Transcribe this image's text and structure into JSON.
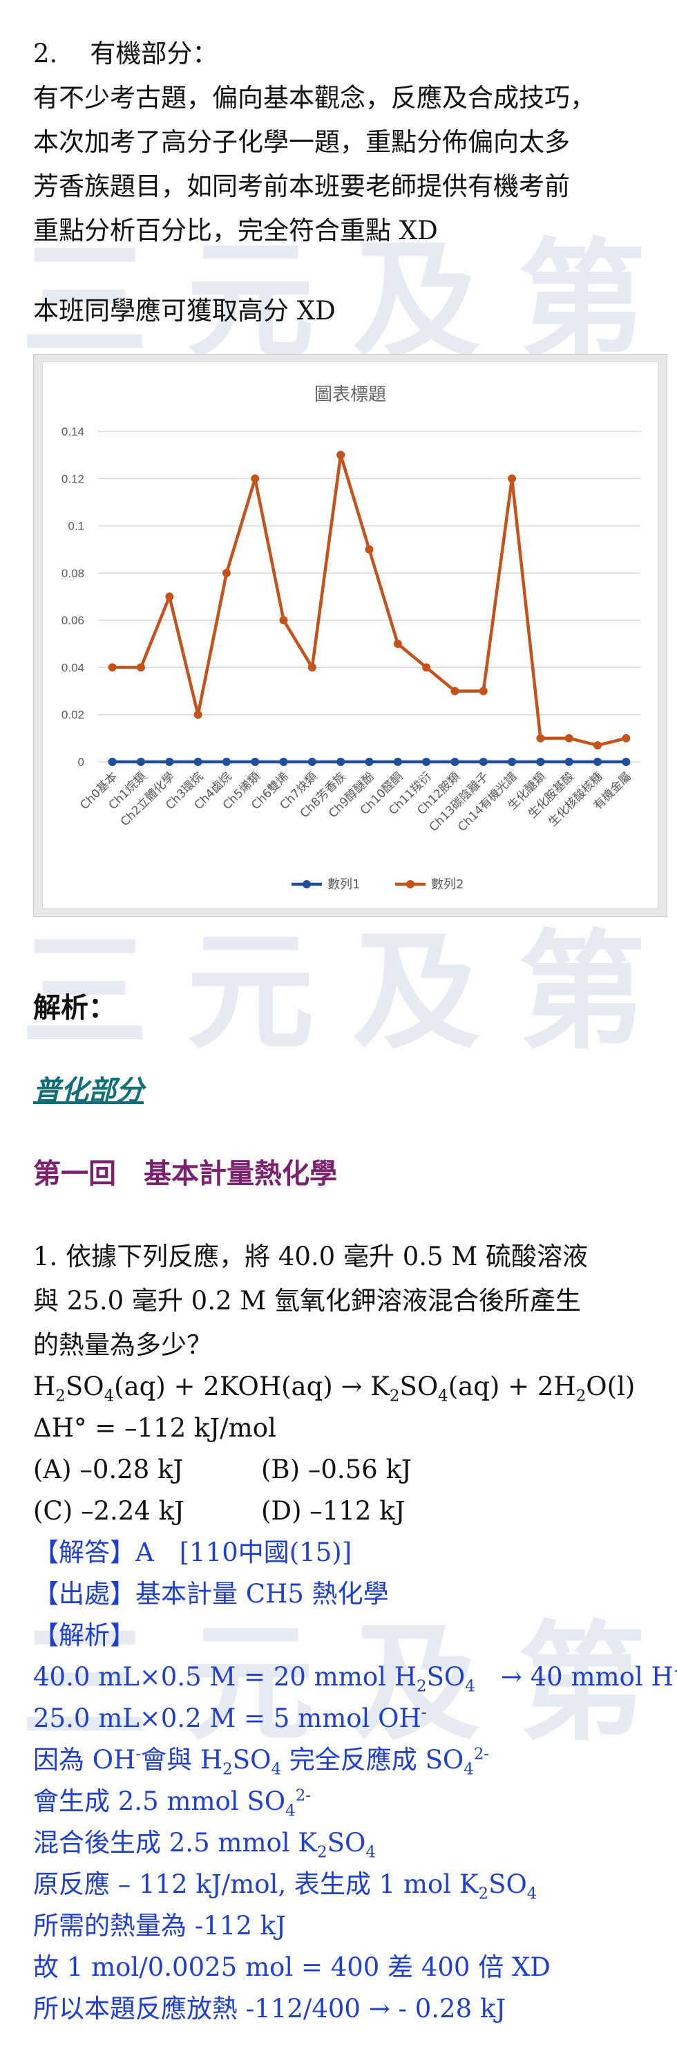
{
  "section_intro": {
    "number": "2.",
    "title": "有機部分：",
    "paragraph": [
      "有不少考古題，偏向基本觀念，反應及合成技巧，",
      "本次加考了高分子化學一題，重點分佈偏向太多",
      "芳香族題目，如同考前本班要老師提供有機考前",
      "重點分析百分比，完全符合重點 XD"
    ],
    "note": "本班同學應可獲取高分 XD"
  },
  "watermark": "三元及第",
  "chart_data": {
    "type": "line",
    "title": "圖表標題",
    "categories": [
      "Ch0基本",
      "Ch1烷類",
      "Ch2立體化學",
      "Ch3環烷",
      "Ch4鹵烷",
      "Ch5烯類",
      "Ch6雙烯",
      "Ch7炔類",
      "Ch8芳香族",
      "Ch9醇醚酚",
      "Ch10醛酮",
      "Ch11羧衍",
      "Ch12胺類",
      "Ch13碳陰離子",
      "Ch14有機光譜",
      "生化醣類",
      "生化胺基酸",
      "生化核酸核糖",
      "有機金屬"
    ],
    "series": [
      {
        "name": "數列1",
        "color": "#1f4e9c",
        "values": [
          0,
          0,
          0,
          0,
          0,
          0,
          0,
          0,
          0,
          0,
          0,
          0,
          0,
          0,
          0,
          0,
          0,
          0,
          0
        ]
      },
      {
        "name": "數列2",
        "color": "#c5521a",
        "values": [
          0.04,
          0.04,
          0.07,
          0.02,
          0.08,
          0.12,
          0.06,
          0.04,
          0.13,
          0.09,
          0.05,
          0.04,
          0.03,
          0.03,
          0.12,
          0.01,
          0.01,
          0.007,
          0.01
        ]
      }
    ],
    "yticks": [
      "0",
      "0.02",
      "0.04",
      "0.06",
      "0.08",
      "0.1",
      "0.12",
      "0.14"
    ],
    "ylim": [
      0,
      0.14
    ],
    "grid": true,
    "legend": "bottom"
  },
  "analysis": {
    "label": "解析：",
    "subsection": "普化部分",
    "chapter": "第一回　基本計量熱化學"
  },
  "question": {
    "stem": [
      "1. 依據下列反應，將 40.0 毫升 0.5 M 硫酸溶液",
      "與 25.0 毫升 0.2 M 氫氧化鉀溶液混合後所產生",
      "的熱量為多少？"
    ],
    "eq_lhs1": "H",
    "eq_lhs1b": "SO",
    "eq_aq1": "(aq) + 2KOH(aq) → K",
    "eq_rhs1b": "SO",
    "eq_aq2": "(aq) + 2H",
    "eq_rhs2b": "O(l)",
    "dh": "ΔH° = –112 kJ/mol",
    "opt_a": "(A) –0.28 kJ",
    "opt_b": "(B) –0.56 kJ",
    "opt_c": "(C) –2.24 kJ",
    "opt_d": "(D) –112 kJ"
  },
  "answer": {
    "ans": "【解答】A　[110中國(15)]",
    "src": "【出處】基本計量 CH5 熱化學",
    "exp": "【解析】",
    "s1": "40.0 mL×0.5 M = 20 mmol H",
    "s1b": "SO",
    "s1c": "　→ 40 mmol H",
    "s2": "25.0 mL×0.2 M = 5 mmol OH",
    "s3a": "因為 OH",
    "s3b": "會與 H",
    "s3c": "SO",
    "s3d": " 完全反應成 SO",
    "s4a": "會生成 2.5 mmol SO",
    "s5a": "混合後生成 2.5 mmol K",
    "s5b": "SO",
    "s6a": "原反應 – 112 kJ/mol, 表生成 1 mol K",
    "s6b": "SO",
    "s7": "所需的熱量為 -112 kJ",
    "s8": "故 1 mol/0.0025 mol = 400 差 400 倍 XD",
    "s9": "所以本題反應放熱 -112/400 → - 0.28 kJ"
  }
}
